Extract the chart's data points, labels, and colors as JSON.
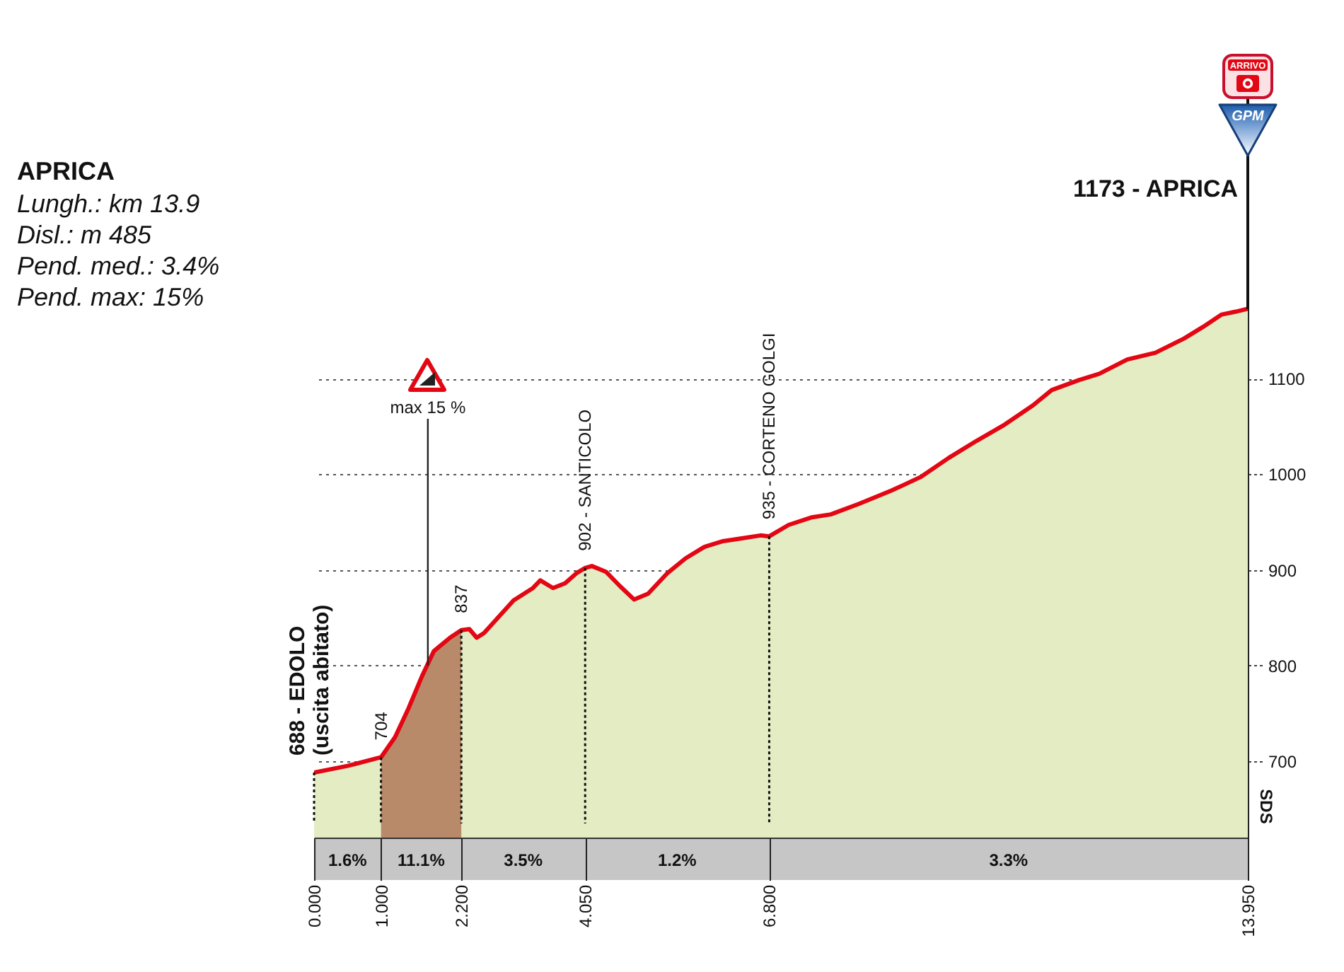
{
  "chart_data": {
    "type": "area",
    "title": "APRICA",
    "subtitle": "Lungh.: km 13.9\nDisl.: m 485\nPend. med.: 3.4%\nPend. max: 15%",
    "x": [
      0,
      0.5,
      1,
      1.21,
      1.41,
      1.62,
      1.79,
      2.03,
      2.2,
      2.32,
      2.43,
      2.54,
      2.76,
      2.98,
      3.27,
      3.38,
      3.57,
      3.75,
      3.93,
      4.05,
      4.15,
      4.36,
      4.57,
      4.78,
      4.99,
      5.27,
      5.55,
      5.83,
      6.11,
      6.39,
      6.67,
      6.8,
      7.09,
      7.44,
      7.72,
      8.14,
      8.63,
      9.06,
      9.48,
      9.9,
      10.32,
      10.74,
      11.02,
      11.45,
      11.73,
      12.15,
      12.57,
      13.0,
      13.28,
      13.56,
      13.77,
      13.95
    ],
    "series": [
      {
        "color": "#e3ecc3",
        "values": [
          688,
          695,
          704,
          null,
          null,
          null,
          null,
          null,
          837,
          838,
          829,
          834,
          851,
          868,
          881,
          889,
          881,
          886,
          897,
          902,
          904,
          898,
          883,
          869,
          875,
          896,
          912,
          924,
          930,
          933,
          936,
          935,
          947,
          955,
          958,
          969,
          983,
          997,
          1017,
          1035,
          1052,
          1072,
          1088,
          1099,
          1105,
          1120,
          1127,
          1142,
          1154,
          1167,
          1170,
          1173
        ]
      },
      {
        "color": "#b98a6a",
        "x": [
          1,
          1.21,
          1.41,
          1.62,
          1.79,
          2.03,
          2.2
        ],
        "values": [
          704,
          725,
          755,
          790,
          815,
          829,
          837
        ]
      },
      {
        "type": "line",
        "color": "#e30613",
        "values": [
          688,
          695,
          704,
          725,
          755,
          790,
          815,
          829,
          837,
          838,
          829,
          834,
          851,
          868,
          881,
          889,
          881,
          886,
          897,
          902,
          904,
          898,
          883,
          869,
          875,
          896,
          912,
          924,
          930,
          933,
          936,
          935,
          947,
          955,
          958,
          969,
          983,
          997,
          1017,
          1035,
          1052,
          1072,
          1088,
          1099,
          1105,
          1120,
          1127,
          1142,
          1154,
          1167,
          1170,
          1173
        ]
      }
    ],
    "xlim": [
      0,
      13.95
    ],
    "xticks": [
      {
        "value": 0,
        "label": "0.000"
      },
      {
        "value": 1,
        "label": "1.000"
      },
      {
        "value": 2.2,
        "label": "2.200"
      },
      {
        "value": 4.05,
        "label": "4.050"
      },
      {
        "value": 6.8,
        "label": "6.800"
      },
      {
        "value": 13.95,
        "label": "13.950"
      }
    ],
    "ylim": [
      620,
      1200
    ],
    "yticks": [
      700,
      800,
      900,
      1000,
      1100
    ],
    "grid": "y",
    "annotations": [
      {
        "text": "688 - EDOLO\n(uscita abitato)",
        "x": 0,
        "y": 688
      },
      {
        "text": "704",
        "x": 1,
        "y": 704
      },
      {
        "text": "837",
        "x": 2.2,
        "y": 837
      },
      {
        "text": "902 - SANTICOLO",
        "x": 4.05,
        "y": 902
      },
      {
        "text": "935 - CORTENO GOLGI",
        "x": 6.8,
        "y": 935
      },
      {
        "text": "max 15 %",
        "x": 1.7,
        "y": 800
      },
      {
        "text": "1173 - APRICA",
        "x": 13.95,
        "y": 1173
      },
      {
        "text": "ARRIVO",
        "x": 13.95,
        "y": 1173
      },
      {
        "text": "GPM",
        "x": 13.95,
        "y": 1173
      },
      "1.6%",
      "11.1%",
      "3.5%",
      "1.2%",
      "3.3%",
      "SDS"
    ]
  }
}
